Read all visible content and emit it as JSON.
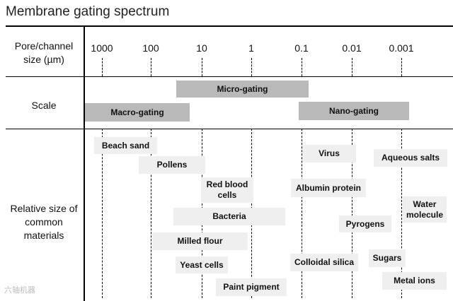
{
  "title": "Membrane gating spectrum",
  "row_labels": {
    "size": "Pore/channel size (µm)",
    "scale": "Scale",
    "materials": "Relative size of common materials"
  },
  "ticks": [
    "1000",
    "100",
    "10",
    "1",
    "0.1",
    "0.01",
    "0.001"
  ],
  "bars": [
    {
      "label": "Micro-gating"
    },
    {
      "label": "Macro-gating"
    },
    {
      "label": "Nano-gating"
    }
  ],
  "materials": [
    {
      "label": "Beach sand"
    },
    {
      "label": "Pollens"
    },
    {
      "label": "Red blood cells"
    },
    {
      "label": "Bacteria"
    },
    {
      "label": "Milled flour"
    },
    {
      "label": "Yeast cells"
    },
    {
      "label": "Paint pigment"
    },
    {
      "label": "Virus"
    },
    {
      "label": "Albumin protein"
    },
    {
      "label": "Pyrogens"
    },
    {
      "label": "Colloidal silica"
    },
    {
      "label": "Aqueous salts"
    },
    {
      "label": "Water molecule"
    },
    {
      "label": "Sugars"
    },
    {
      "label": "Metal ions"
    }
  ],
  "watermark": "六轴机器"
}
